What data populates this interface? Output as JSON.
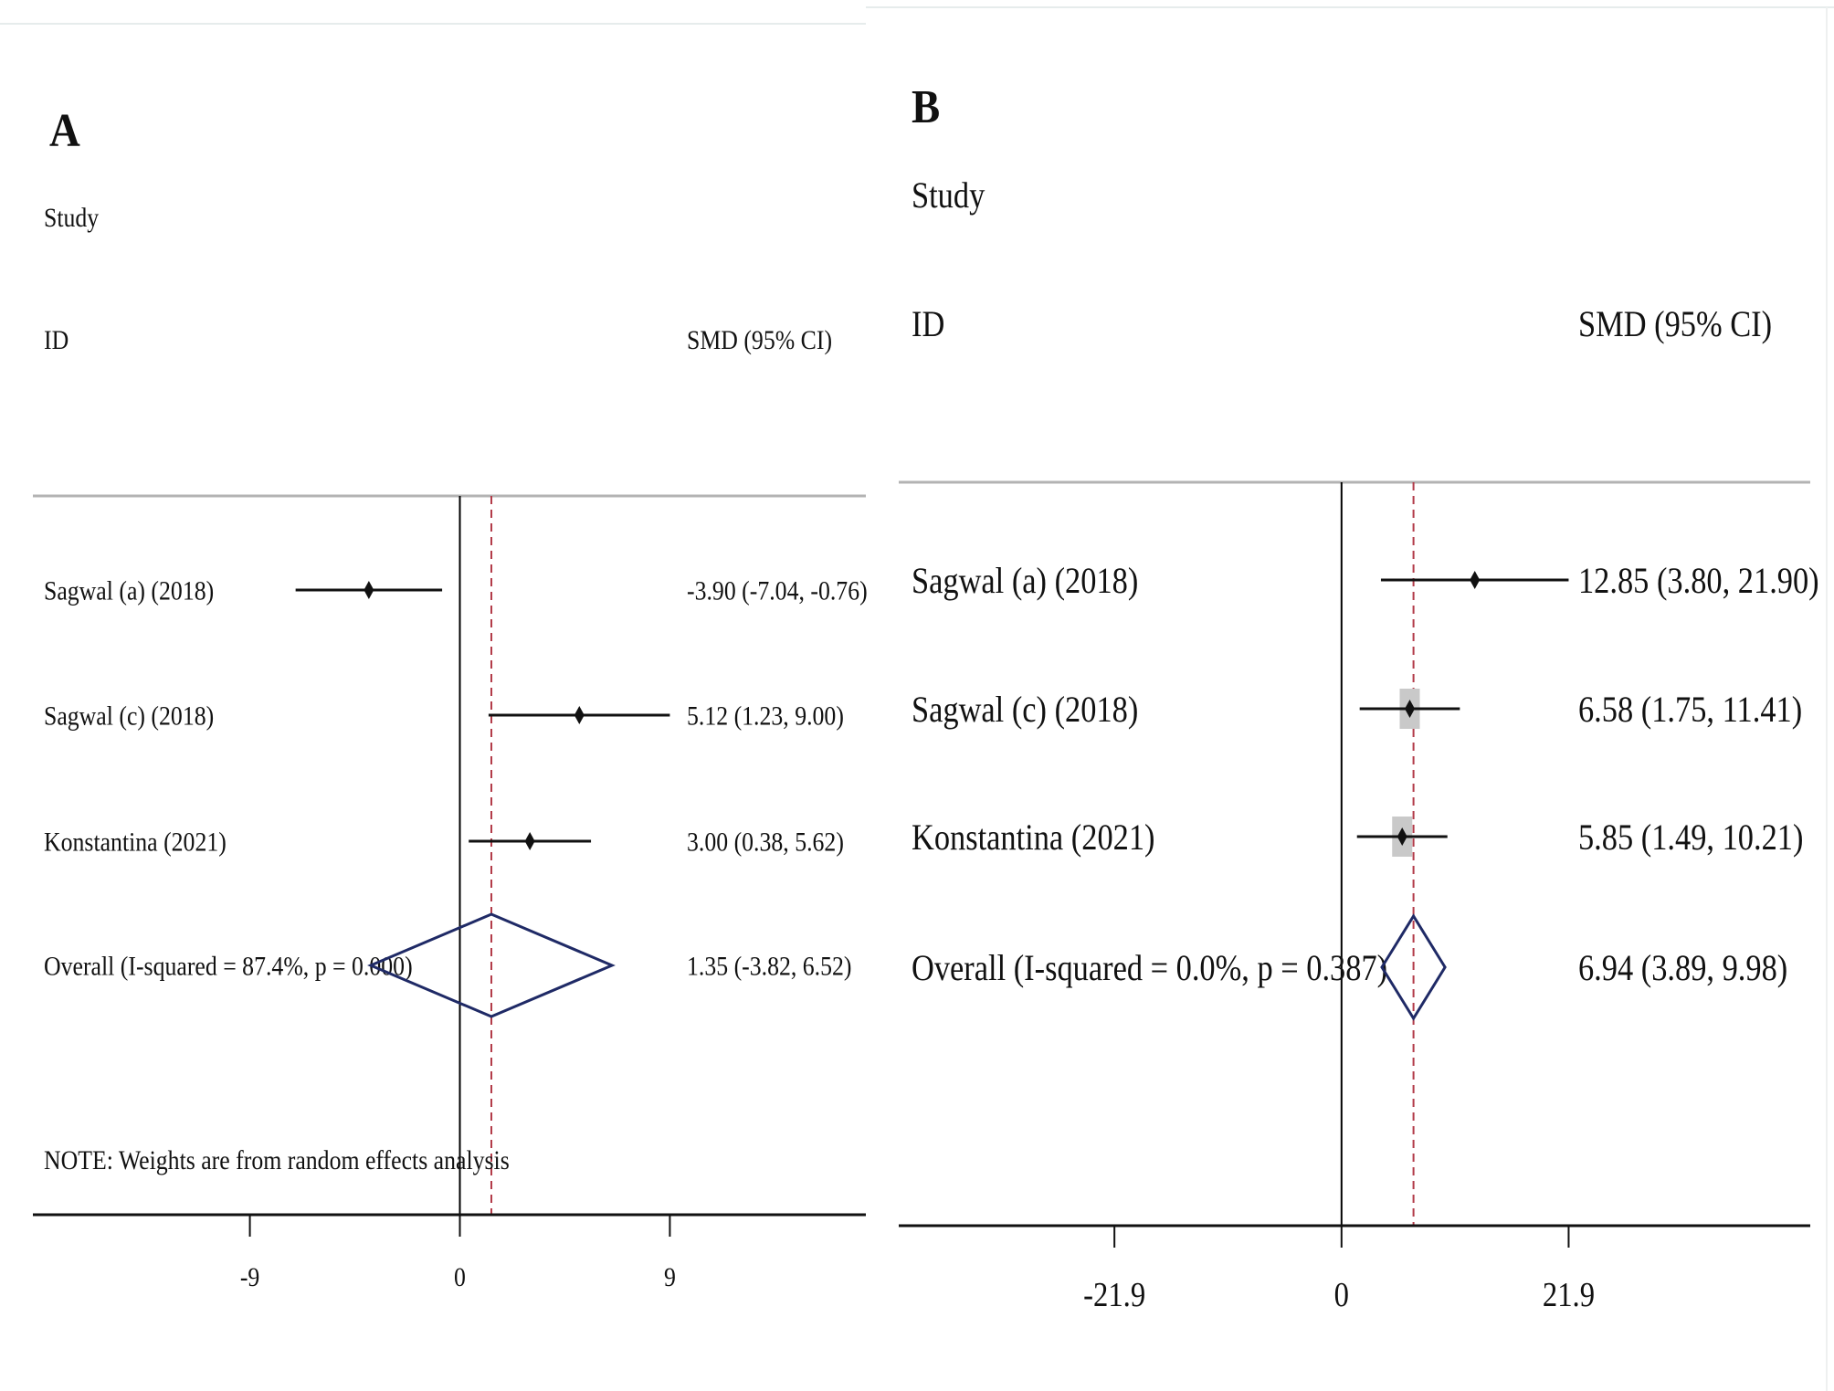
{
  "colors": {
    "ink": "#111111",
    "diamond": "#1f2a66",
    "null_line": "#000000",
    "overall_line": "#b23a48",
    "separator": "#b3b3b3",
    "weight_box": "#c9c9c9"
  },
  "chart_data": [
    {
      "type": "forest",
      "panel_label": "A",
      "header_study": "Study",
      "header_id": "ID",
      "header_effect": "SMD (95% CI)",
      "x_ticks": [
        -9,
        0,
        9
      ],
      "x_tick_labels": [
        "-9",
        "0",
        "9"
      ],
      "xlim": [
        -18.3,
        17.4
      ],
      "null_value": 0,
      "overall_line_value": 1.35,
      "studies": [
        {
          "name": "Sagwal (a) (2018)",
          "smd": -3.9,
          "lo": -7.04,
          "hi": -0.76,
          "weight_box": 0,
          "ci_text": "-3.90 (-7.04, -0.76)"
        },
        {
          "name": "Sagwal (c) (2018)",
          "smd": 5.12,
          "lo": 1.23,
          "hi": 9.0,
          "weight_box": 0,
          "ci_text": "5.12 (1.23, 9.00)"
        },
        {
          "name": "Konstantina (2021)",
          "smd": 3.0,
          "lo": 0.38,
          "hi": 5.62,
          "weight_box": 0,
          "ci_text": "3.00 (0.38, 5.62)"
        }
      ],
      "overall": {
        "label": "Overall  (I-squared = 87.4%, p = 0.000)",
        "smd": 1.35,
        "lo": -3.82,
        "hi": 6.52,
        "ci_text": "1.35 (-3.82, 6.52)"
      },
      "note": "NOTE: Weights are from random effects analysis"
    },
    {
      "type": "forest",
      "panel_label": "B",
      "header_study": "Study",
      "header_id": "ID",
      "header_effect": "SMD (95% CI)",
      "x_ticks": [
        -21.9,
        0,
        21.9
      ],
      "x_tick_labels": [
        "-21.9",
        "0",
        "21.9"
      ],
      "xlim": [
        -42.7,
        45.2
      ],
      "null_value": 0,
      "overall_line_value": 6.94,
      "studies": [
        {
          "name": "Sagwal (a) (2018)",
          "smd": 12.85,
          "lo": 3.8,
          "hi": 21.9,
          "weight_box": 0,
          "ci_text": "12.85 (3.80, 21.90)"
        },
        {
          "name": "Sagwal (c) (2018)",
          "smd": 6.58,
          "lo": 1.75,
          "hi": 11.41,
          "weight_box": 1,
          "ci_text": "6.58 (1.75, 11.41)"
        },
        {
          "name": "Konstantina (2021)",
          "smd": 5.85,
          "lo": 1.49,
          "hi": 10.21,
          "weight_box": 1,
          "ci_text": "5.85 (1.49, 10.21)"
        }
      ],
      "overall": {
        "label": "Overall  (I-squared = 0.0%, p = 0.387)",
        "smd": 6.94,
        "lo": 3.89,
        "hi": 9.98,
        "ci_text": "6.94 (3.89, 9.98)"
      },
      "note": ""
    }
  ]
}
